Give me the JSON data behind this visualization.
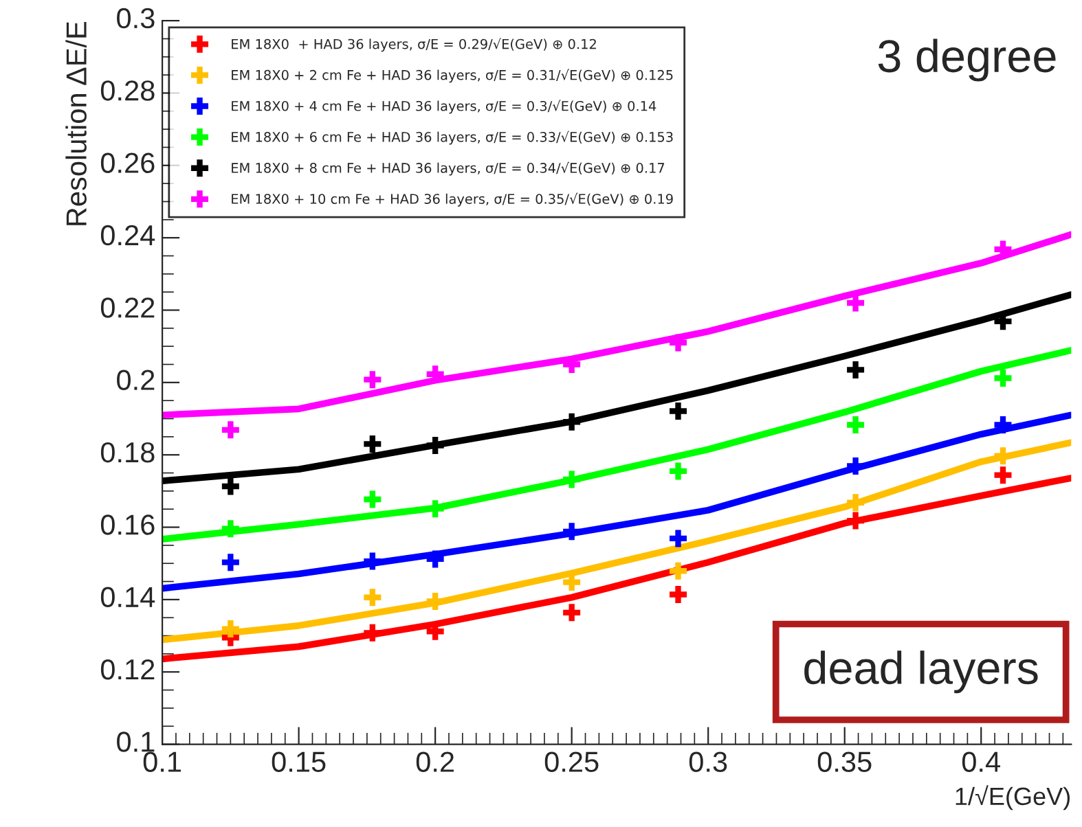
{
  "chart_data": {
    "type": "scatter",
    "xlabel": "1/√E(GeV)",
    "ylabel": "Resolution ΔE/E",
    "xlim": [
      0.1,
      0.433
    ],
    "xticks": [
      0.1,
      0.15,
      0.2,
      0.25,
      0.3,
      0.35,
      0.4
    ],
    "ylim": [
      0.1,
      0.3
    ],
    "yticks": [
      0.1,
      0.12,
      0.14,
      0.16,
      0.18,
      0.2,
      0.22,
      0.24,
      0.26,
      0.28,
      0.3
    ],
    "marker": "cross",
    "legend": "top left",
    "grid": false,
    "annotations": [
      "3 degree",
      "dead layers"
    ],
    "series": [
      {
        "name": "EM 18X0  + HAD 36 layers, σ/E = 0.29/√E(GeV) ⊕ 0.12",
        "color": "#ff0000",
        "x": [
          0.125,
          0.177,
          0.2,
          0.25,
          0.289,
          0.354,
          0.408
        ],
        "values": [
          0.1295,
          0.1308,
          0.1312,
          0.1364,
          0.1414,
          0.1618,
          0.1744
        ]
      },
      {
        "name": "EM 18X0 + 2 cm Fe + HAD 36 layers, σ/E = 0.31/√E(GeV) ⊕ 0.125",
        "color": "#ffbf00",
        "x": [
          0.125,
          0.177,
          0.2,
          0.25,
          0.289,
          0.354,
          0.408
        ],
        "values": [
          0.1319,
          0.1406,
          0.1395,
          0.1448,
          0.1479,
          0.1668,
          0.1797
        ]
      },
      {
        "name": "EM 18X0 + 4 cm Fe + HAD 36 layers, σ/E = 0.3/√E(GeV) ⊕ 0.14",
        "color": "#0000ff",
        "x": [
          0.125,
          0.177,
          0.2,
          0.25,
          0.289,
          0.354,
          0.408
        ],
        "values": [
          0.1503,
          0.1506,
          0.1512,
          0.1588,
          0.1569,
          0.1769,
          0.1883
        ]
      },
      {
        "name": "EM 18X0 + 6 cm Fe + HAD 36 layers, σ/E = 0.33/√E(GeV) ⊕ 0.153",
        "color": "#00ff00",
        "x": [
          0.125,
          0.177,
          0.2,
          0.25,
          0.289,
          0.354,
          0.408
        ],
        "values": [
          0.1596,
          0.1677,
          0.1651,
          0.1732,
          0.1755,
          0.1883,
          0.2012
        ]
      },
      {
        "name": "EM 18X0 + 8 cm Fe + HAD 36 layers, σ/E = 0.34/√E(GeV) ⊕ 0.17",
        "color": "#000000",
        "x": [
          0.125,
          0.177,
          0.2,
          0.25,
          0.289,
          0.354,
          0.408
        ],
        "values": [
          0.1713,
          0.183,
          0.1826,
          0.1891,
          0.1921,
          0.2035,
          0.2169
        ]
      },
      {
        "name": "EM 18X0 + 10 cm Fe + HAD 36 layers, σ/E = 0.35/√E(GeV) ⊕ 0.19",
        "color": "#ff00ff",
        "x": [
          0.125,
          0.177,
          0.2,
          0.25,
          0.289,
          0.354,
          0.408
        ],
        "values": [
          0.1869,
          0.2008,
          0.2023,
          0.205,
          0.211,
          0.222,
          0.2368
        ]
      },
      {
        "type": "line",
        "marker": "none",
        "color": "#ff0000",
        "x": [
          0.1,
          0.15,
          0.2,
          0.25,
          0.3,
          0.35,
          0.4,
          0.433
        ],
        "values": [
          0.1236,
          0.127,
          0.1332,
          0.1406,
          0.1503,
          0.1611,
          0.1687,
          0.1736
        ]
      },
      {
        "type": "line",
        "marker": "none",
        "color": "#ffbf00",
        "x": [
          0.1,
          0.15,
          0.2,
          0.25,
          0.3,
          0.35,
          0.4,
          0.433
        ],
        "values": [
          0.1289,
          0.1328,
          0.1391,
          0.1473,
          0.1562,
          0.1656,
          0.1781,
          0.1834
        ]
      },
      {
        "type": "line",
        "marker": "none",
        "color": "#0000ff",
        "x": [
          0.1,
          0.15,
          0.2,
          0.25,
          0.3,
          0.35,
          0.4,
          0.433
        ],
        "values": [
          0.1431,
          0.1471,
          0.1525,
          0.1583,
          0.1647,
          0.1755,
          0.1857,
          0.191
        ]
      },
      {
        "type": "line",
        "marker": "none",
        "color": "#00ff00",
        "x": [
          0.1,
          0.15,
          0.2,
          0.25,
          0.3,
          0.35,
          0.4,
          0.433
        ],
        "values": [
          0.1567,
          0.1608,
          0.1653,
          0.173,
          0.1815,
          0.1918,
          0.2031,
          0.2089
        ]
      },
      {
        "type": "line",
        "marker": "none",
        "color": "#000000",
        "x": [
          0.1,
          0.15,
          0.2,
          0.25,
          0.3,
          0.35,
          0.4,
          0.433
        ],
        "values": [
          0.1728,
          0.176,
          0.1827,
          0.1892,
          0.1978,
          0.2073,
          0.2172,
          0.2243
        ]
      },
      {
        "type": "line",
        "marker": "none",
        "color": "#ff00ff",
        "x": [
          0.1,
          0.15,
          0.2,
          0.25,
          0.3,
          0.35,
          0.4,
          0.433
        ],
        "values": [
          0.191,
          0.1927,
          0.2006,
          0.2065,
          0.2141,
          0.2239,
          0.233,
          0.2409
        ]
      }
    ]
  }
}
